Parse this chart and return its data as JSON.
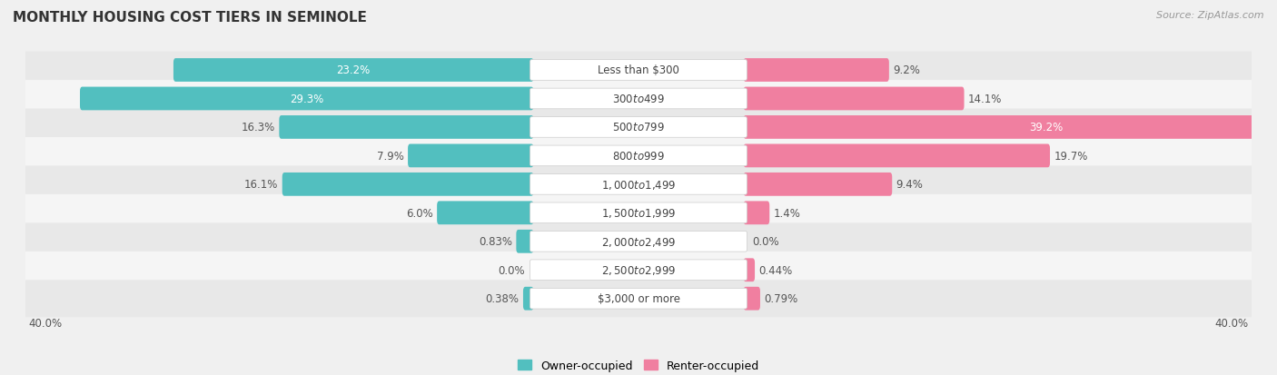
{
  "title": "MONTHLY HOUSING COST TIERS IN SEMINOLE",
  "source": "Source: ZipAtlas.com",
  "categories": [
    "Less than $300",
    "$300 to $499",
    "$500 to $799",
    "$800 to $999",
    "$1,000 to $1,499",
    "$1,500 to $1,999",
    "$2,000 to $2,499",
    "$2,500 to $2,999",
    "$3,000 or more"
  ],
  "owner_values": [
    23.2,
    29.3,
    16.3,
    7.9,
    16.1,
    6.0,
    0.83,
    0.0,
    0.38
  ],
  "renter_values": [
    9.2,
    14.1,
    39.2,
    19.7,
    9.4,
    1.4,
    0.0,
    0.44,
    0.79
  ],
  "owner_color": "#52bfbf",
  "renter_color": "#f07fa0",
  "axis_max": 40.0,
  "background_color": "#f0f0f0",
  "row_bg_even": "#e8e8e8",
  "row_bg_odd": "#f5f5f5",
  "title_fontsize": 11,
  "source_fontsize": 8,
  "label_fontsize": 8.5,
  "category_fontsize": 8.5,
  "legend_fontsize": 9,
  "bar_height": 0.52,
  "axis_label_fontsize": 8.5
}
